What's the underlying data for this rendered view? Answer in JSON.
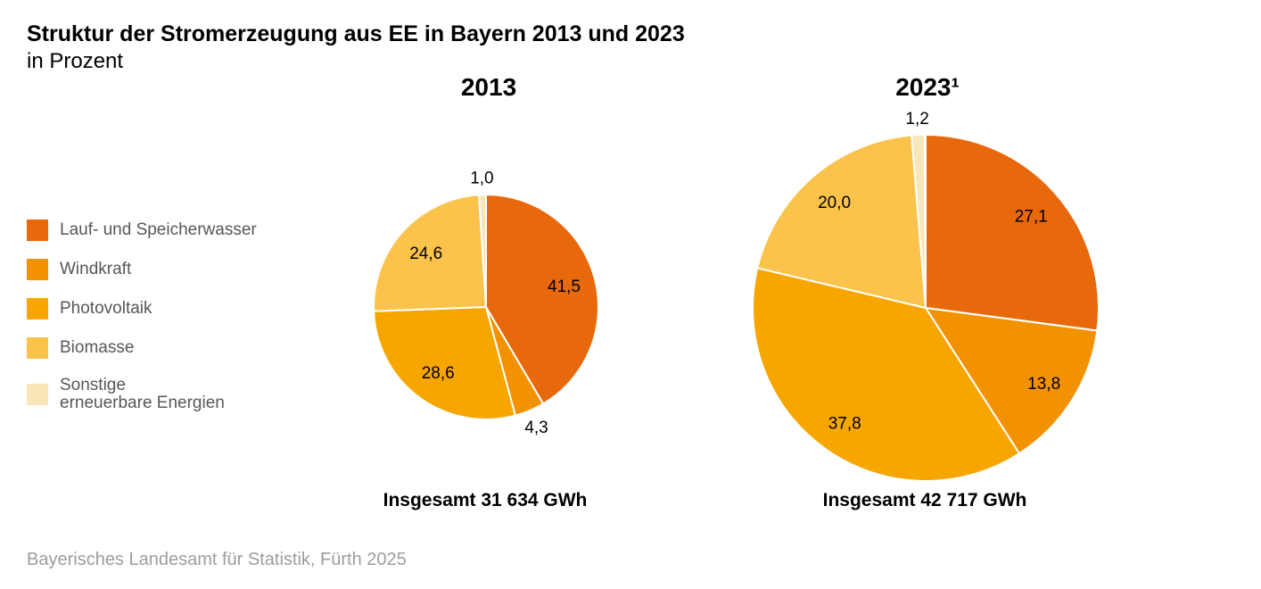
{
  "title": "Struktur der Stromerzeugung aus EE in Bayern 2013 und 2023",
  "subtitle": "in Prozent",
  "source": "Bayerisches Landesamt für Statistik, Fürth 2025",
  "palette": {
    "lauf_und_speicherwasser": "#e8680c",
    "windkraft": "#f39200",
    "photovoltaik": "#f7a600",
    "biomasse": "#fbc34b",
    "sonstige": "#fae7b9"
  },
  "legend": {
    "items": [
      {
        "label": "Lauf- und Speicherwasser",
        "color": "#e8680c"
      },
      {
        "label": "Windkraft",
        "color": "#f39200"
      },
      {
        "label": "Photovoltaik",
        "color": "#f7a600"
      },
      {
        "label": "Biomasse",
        "color": "#fbc34b"
      },
      {
        "label": [
          "Sonstige",
          "erneuerbare Energien"
        ],
        "color": "#fae7b9"
      }
    ]
  },
  "chart_data": [
    {
      "type": "pie",
      "title": "2013",
      "categories": [
        "Lauf- und Speicherwasser",
        "Windkraft",
        "Photovoltaik",
        "Biomasse",
        "Sonstige erneuerbare Energien"
      ],
      "values": [
        41.5,
        4.3,
        28.6,
        24.6,
        1.0
      ],
      "value_labels": [
        "41,5",
        "4,3",
        "28,6",
        "24,6",
        "1,0"
      ],
      "colors": [
        "#e8680c",
        "#f39200",
        "#f7a600",
        "#fbc34b",
        "#fae7b9"
      ],
      "start_angle_deg": 0,
      "direction": "clockwise",
      "total_label": "Insgesamt 31 634 GWh",
      "legend_position": "left",
      "slice_border_color": "#ffffff"
    },
    {
      "type": "pie",
      "title": "2023¹",
      "categories": [
        "Lauf- und Speicherwasser",
        "Windkraft",
        "Photovoltaik",
        "Biomasse",
        "Sonstige erneuerbare Energien"
      ],
      "values": [
        27.1,
        13.8,
        37.8,
        20.0,
        1.2
      ],
      "value_labels": [
        "27,1",
        "13,8",
        "37,8",
        "20,0",
        "1,2"
      ],
      "colors": [
        "#e8680c",
        "#f39200",
        "#f7a600",
        "#fbc34b",
        "#fae7b9"
      ],
      "start_angle_deg": 0,
      "direction": "clockwise",
      "total_label": "Insgesamt 42 717 GWh",
      "legend_position": "left",
      "slice_border_color": "#ffffff"
    }
  ]
}
